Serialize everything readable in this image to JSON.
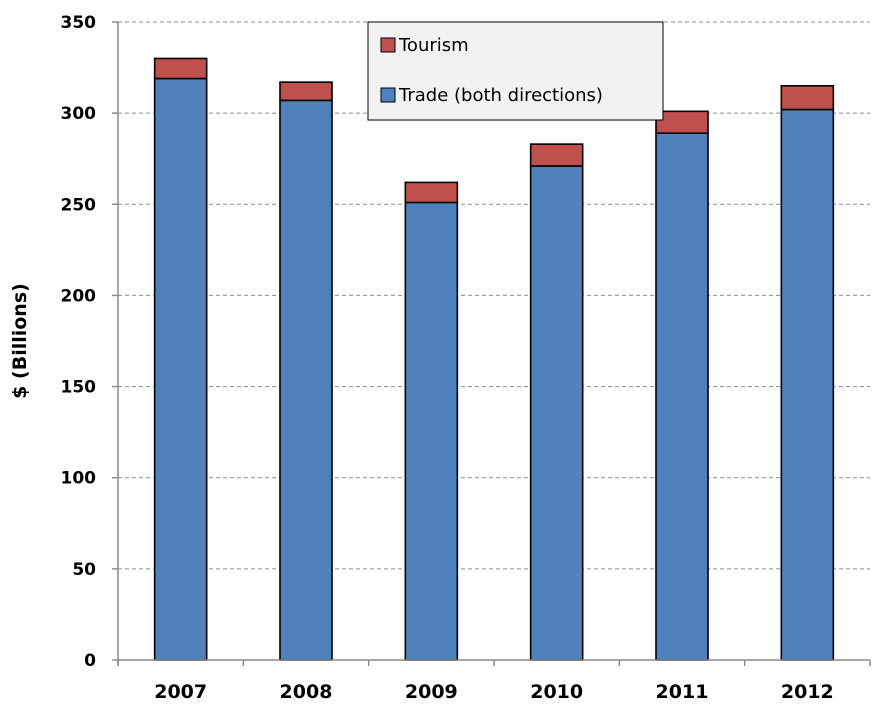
{
  "chart_data": {
    "type": "bar",
    "stacked": true,
    "categories": [
      "2007",
      "2008",
      "2009",
      "2010",
      "2011",
      "2012"
    ],
    "series": [
      {
        "name": "Trade (both directions)",
        "values": [
          319,
          307,
          251,
          271,
          289,
          302
        ],
        "color": "#4f81bd"
      },
      {
        "name": "Tourism",
        "values": [
          11,
          10,
          11,
          12,
          12,
          13
        ],
        "color": "#c0504d"
      }
    ],
    "title": "",
    "xlabel": "",
    "ylabel": "$ (Billions)",
    "ylim": [
      0,
      350
    ],
    "yticks": [
      0,
      50,
      100,
      150,
      200,
      250,
      300,
      350
    ],
    "grid": true,
    "legend_position": "top-center"
  }
}
